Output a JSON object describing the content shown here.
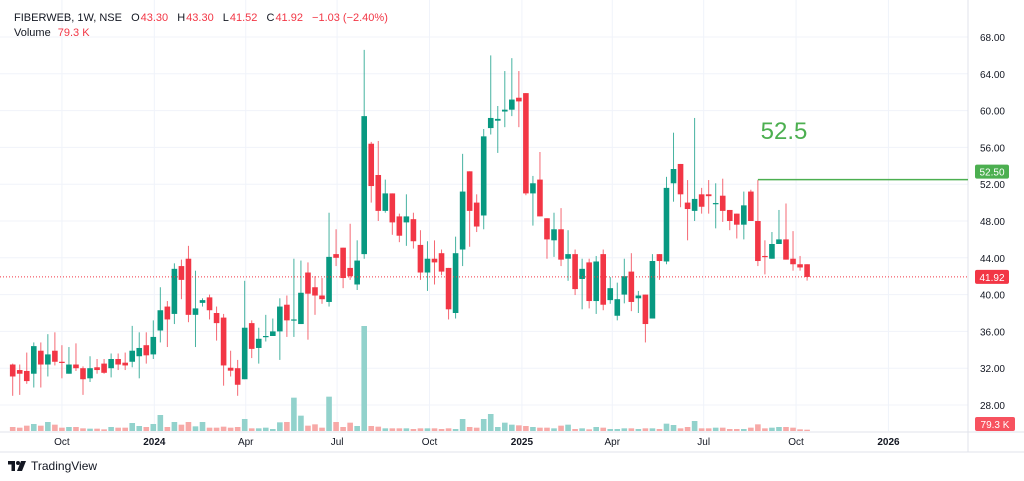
{
  "header": {
    "symbol": "FIBERWEB, 1W, NSE",
    "ohlc": [
      {
        "label": "O",
        "value": "43.30"
      },
      {
        "label": "H",
        "value": "43.30"
      },
      {
        "label": "L",
        "value": "41.52"
      },
      {
        "label": "C",
        "value": "41.92"
      }
    ],
    "change": "−1.03 (−2.40%)",
    "volume_label": "Volume",
    "volume_value": "79.3 K"
  },
  "footer": {
    "brand": "TradingView"
  },
  "chart_data": {
    "type": "candlestick",
    "interval": "1W",
    "columns": [
      "date",
      "open",
      "high",
      "low",
      "close",
      "volume_k"
    ],
    "candles": [
      [
        "2023-08-07",
        32.4,
        32.5,
        29.0,
        31.1,
        240
      ],
      [
        "2023-08-14",
        31.8,
        32.4,
        29.1,
        31.4,
        200
      ],
      [
        "2023-08-21",
        31.7,
        33.7,
        30.3,
        30.6,
        320
      ],
      [
        "2023-08-28",
        31.4,
        34.8,
        29.9,
        34.4,
        420
      ],
      [
        "2023-09-04",
        33.9,
        34.8,
        29.9,
        32.4,
        320
      ],
      [
        "2023-09-11",
        32.4,
        35.7,
        31.1,
        33.5,
        540
      ],
      [
        "2023-09-18",
        33.9,
        35.9,
        32.3,
        32.7,
        380
      ],
      [
        "2023-09-25",
        32.7,
        34.5,
        30.9,
        32.6,
        200
      ],
      [
        "2023-10-02",
        31.4,
        34.3,
        31.4,
        32.4,
        240
      ],
      [
        "2023-10-09",
        32.4,
        34.7,
        31.7,
        32.0,
        240
      ],
      [
        "2023-10-16",
        32.0,
        32.2,
        29.1,
        30.8,
        160
      ],
      [
        "2023-10-23",
        30.9,
        33.3,
        30.5,
        32.0,
        140
      ],
      [
        "2023-10-30",
        32.1,
        33.0,
        31.4,
        31.8,
        140
      ],
      [
        "2023-11-06",
        32.5,
        33.0,
        31.4,
        31.5,
        100
      ],
      [
        "2023-11-13",
        32.0,
        33.6,
        31.0,
        33.0,
        240
      ],
      [
        "2023-11-20",
        33.0,
        33.6,
        31.8,
        32.4,
        200
      ],
      [
        "2023-11-27",
        32.6,
        33.7,
        31.8,
        32.3,
        200
      ],
      [
        "2023-12-04",
        32.7,
        36.6,
        32.1,
        33.9,
        480
      ],
      [
        "2023-12-11",
        33.3,
        35.9,
        30.9,
        34.2,
        300
      ],
      [
        "2023-12-18",
        34.5,
        35.9,
        32.5,
        33.4,
        240
      ],
      [
        "2023-12-25",
        33.5,
        37.2,
        33.0,
        35.4,
        420
      ],
      [
        "2024-01-01",
        36.1,
        40.8,
        34.8,
        38.3,
        960
      ],
      [
        "2024-01-08",
        38.7,
        39.3,
        34.3,
        37.3,
        240
      ],
      [
        "2024-01-15",
        37.9,
        43.4,
        36.8,
        42.8,
        540
      ],
      [
        "2024-01-22",
        43.1,
        43.8,
        39.5,
        41.6,
        380
      ],
      [
        "2024-01-29",
        43.9,
        45.3,
        37.0,
        37.8,
        540
      ],
      [
        "2024-02-05",
        37.8,
        42.6,
        34.3,
        38.5,
        280
      ],
      [
        "2024-02-12",
        39.1,
        39.6,
        38.7,
        39.4,
        540
      ],
      [
        "2024-02-19",
        39.7,
        40.0,
        37.3,
        38.3,
        200
      ],
      [
        "2024-02-26",
        38.0,
        38.7,
        35.0,
        36.9,
        200
      ],
      [
        "2024-03-04",
        37.5,
        37.9,
        30.1,
        32.3,
        260
      ],
      [
        "2024-03-11",
        32.05,
        33.9,
        31.1,
        31.73,
        200
      ],
      [
        "2024-03-18",
        32.0,
        32.9,
        29.0,
        30.2,
        240
      ],
      [
        "2024-03-25",
        30.8,
        41.5,
        30.8,
        36.4,
        720
      ],
      [
        "2024-04-01",
        36.9,
        37.2,
        33.1,
        34.1,
        160
      ],
      [
        "2024-04-08",
        34.2,
        36.4,
        32.5,
        35.2,
        160
      ],
      [
        "2024-04-15",
        35.45,
        37.8,
        34.9,
        35.5,
        200
      ],
      [
        "2024-04-22",
        35.5,
        37.4,
        35.5,
        36.0,
        120
      ],
      [
        "2024-04-29",
        36.0,
        39.6,
        32.9,
        38.7,
        520
      ],
      [
        "2024-05-06",
        38.9,
        39.9,
        35.4,
        37.2,
        540
      ],
      [
        "2024-05-13",
        37.2,
        43.9,
        35.4,
        37.3,
        2000
      ],
      [
        "2024-05-20",
        36.8,
        43.7,
        36.8,
        40.2,
        920
      ],
      [
        "2024-05-27",
        42.4,
        43.5,
        35.1,
        40.1,
        320
      ],
      [
        "2024-06-03",
        40.8,
        42.0,
        37.8,
        39.9,
        400
      ],
      [
        "2024-06-10",
        39.9,
        41.8,
        39.0,
        39.5,
        200
      ],
      [
        "2024-06-17",
        39.2,
        48.9,
        38.7,
        44.1,
        2060
      ],
      [
        "2024-06-24",
        44.4,
        47.1,
        43.1,
        44.0,
        540
      ],
      [
        "2024-07-01",
        45.1,
        45.1,
        40.7,
        41.8,
        240
      ],
      [
        "2024-07-08",
        42.9,
        47.7,
        41.6,
        42.0,
        500
      ],
      [
        "2024-07-15",
        41.1,
        45.9,
        40.5,
        43.7,
        300
      ],
      [
        "2024-07-22",
        44.4,
        66.6,
        43.9,
        59.4,
        6300
      ],
      [
        "2024-07-29",
        56.4,
        56.6,
        50.0,
        51.8,
        300
      ],
      [
        "2024-08-05",
        53.0,
        56.7,
        48.0,
        49.1,
        260
      ],
      [
        "2024-08-12",
        49.1,
        52.5,
        48.9,
        51.0,
        160
      ],
      [
        "2024-08-19",
        51.0,
        51.0,
        46.5,
        47.85,
        160
      ],
      [
        "2024-08-26",
        48.5,
        48.8,
        45.7,
        46.4,
        160
      ],
      [
        "2024-09-02",
        47.85,
        50.9,
        45.3,
        48.5,
        160
      ],
      [
        "2024-09-09",
        48.2,
        48.9,
        45.0,
        45.8,
        120
      ],
      [
        "2024-09-16",
        45.4,
        47.0,
        41.6,
        42.4,
        160
      ],
      [
        "2024-09-23",
        42.4,
        45.8,
        40.4,
        43.9,
        160
      ],
      [
        "2024-09-30",
        43.9,
        45.9,
        41.1,
        43.5,
        160
      ],
      [
        "2024-10-07",
        44.5,
        44.9,
        42.1,
        42.5,
        120
      ],
      [
        "2024-10-14",
        42.9,
        42.9,
        37.3,
        38.4,
        160
      ],
      [
        "2024-10-21",
        38.0,
        46.3,
        37.4,
        44.5,
        120
      ],
      [
        "2024-10-28",
        44.9,
        55.3,
        43.1,
        51.2,
        720
      ],
      [
        "2024-11-04",
        53.4,
        53.4,
        45.2,
        49.1,
        240
      ],
      [
        "2024-11-11",
        50.0,
        50.9,
        46.8,
        47.4,
        200
      ],
      [
        "2024-11-18",
        48.6,
        58.0,
        47.1,
        57.2,
        720
      ],
      [
        "2024-11-25",
        58.1,
        66.0,
        57.4,
        59.2,
        1020
      ],
      [
        "2024-12-02",
        58.9,
        60.5,
        55.4,
        59.1,
        240
      ],
      [
        "2024-12-09",
        59.9,
        64.3,
        58.2,
        60.1,
        500
      ],
      [
        "2024-12-16",
        60.1,
        65.7,
        59.4,
        61.2,
        380
      ],
      [
        "2024-12-23",
        61.4,
        64.3,
        58.2,
        61.0,
        340
      ],
      [
        "2024-12-30",
        61.9,
        61.9,
        50.8,
        51.0,
        300
      ],
      [
        "2025-01-06",
        51.0,
        52.9,
        47.5,
        52.1,
        240
      ],
      [
        "2025-01-13",
        52.5,
        55.5,
        48.5,
        48.5,
        200
      ],
      [
        "2025-01-20",
        48.3,
        48.3,
        43.9,
        46.0,
        200
      ],
      [
        "2025-01-27",
        45.9,
        48.9,
        44.1,
        47.1,
        160
      ],
      [
        "2025-02-03",
        47.1,
        49.4,
        43.1,
        43.8,
        320
      ],
      [
        "2025-02-10",
        43.9,
        47.0,
        41.5,
        44.4,
        380
      ],
      [
        "2025-02-17",
        44.4,
        44.9,
        39.95,
        40.6,
        120
      ],
      [
        "2025-02-24",
        41.7,
        43.9,
        38.4,
        42.8,
        160
      ],
      [
        "2025-03-03",
        43.5,
        43.9,
        38.5,
        39.3,
        100
      ],
      [
        "2025-03-10",
        39.3,
        44.2,
        37.9,
        43.6,
        240
      ],
      [
        "2025-03-17",
        44.4,
        44.9,
        38.3,
        38.9,
        200
      ],
      [
        "2025-03-24",
        39.4,
        41.9,
        39.0,
        40.7,
        120
      ],
      [
        "2025-03-31",
        37.7,
        41.3,
        37.2,
        39.5,
        120
      ],
      [
        "2025-04-07",
        40.0,
        43.9,
        39.05,
        42.0,
        160
      ],
      [
        "2025-04-14",
        42.5,
        44.5,
        38.2,
        39.2,
        160
      ],
      [
        "2025-04-21",
        39.6,
        40.4,
        38.0,
        39.9,
        120
      ],
      [
        "2025-04-28",
        40.0,
        40.0,
        34.8,
        36.8,
        160
      ],
      [
        "2025-05-05",
        37.4,
        44.4,
        37.4,
        43.65,
        160
      ],
      [
        "2025-05-12",
        44.4,
        44.4,
        41.6,
        43.65,
        120
      ],
      [
        "2025-05-19",
        43.6,
        52.8,
        43.3,
        51.6,
        440
      ],
      [
        "2025-05-26",
        52.1,
        57.6,
        50.1,
        53.65,
        360
      ],
      [
        "2025-06-02",
        54.2,
        54.2,
        49.5,
        50.9,
        160
      ],
      [
        "2025-06-09",
        50.0,
        52.45,
        45.9,
        49.3,
        240
      ],
      [
        "2025-06-16",
        49.1,
        59.2,
        48.0,
        50.4,
        600
      ],
      [
        "2025-06-23",
        50.9,
        51.6,
        48.8,
        49.55,
        160
      ],
      [
        "2025-06-30",
        50.9,
        52.45,
        48.8,
        50.7,
        160
      ],
      [
        "2025-07-07",
        49.9,
        52.1,
        47.2,
        49.95,
        200
      ],
      [
        "2025-07-14",
        50.75,
        52.6,
        47.9,
        49.1,
        200
      ],
      [
        "2025-07-21",
        49.2,
        49.2,
        47.0,
        48.0,
        120
      ],
      [
        "2025-07-28",
        48.8,
        48.8,
        46.1,
        47.6,
        120
      ],
      [
        "2025-08-04",
        47.6,
        51.2,
        46.0,
        49.7,
        120
      ],
      [
        "2025-08-11",
        51.2,
        51.4,
        48.0,
        48.0,
        200
      ],
      [
        "2025-08-18",
        48.0,
        52.45,
        43.1,
        43.65,
        400
      ],
      [
        "2025-08-25",
        44.2,
        45.9,
        42.2,
        44.1,
        160
      ],
      [
        "2025-09-01",
        43.9,
        46.8,
        43.9,
        45.5,
        200
      ],
      [
        "2025-09-08",
        45.5,
        49.2,
        45.5,
        46.0,
        240
      ],
      [
        "2025-09-15",
        46.0,
        49.9,
        43.8,
        43.8,
        240
      ],
      [
        "2025-09-22",
        43.9,
        46.9,
        42.6,
        43.3,
        200
      ],
      [
        "2025-09-29",
        43.3,
        44.2,
        42.6,
        42.95,
        100
      ],
      [
        "2025-10-06",
        43.3,
        43.3,
        41.52,
        41.92,
        79.3
      ]
    ],
    "price_axis": {
      "range": [
        28,
        68
      ],
      "ticks": [
        "28.00",
        "32.00",
        "36.00",
        "40.00",
        "44.00",
        "48.00",
        "52.00",
        "56.00",
        "60.00",
        "64.00",
        "68.00"
      ]
    },
    "time_axis": [
      {
        "label": "Oct",
        "date": "2023-10-01"
      },
      {
        "label": "2024",
        "date": "2024-01-01",
        "bold": true
      },
      {
        "label": "Apr",
        "date": "2024-04-01"
      },
      {
        "label": "Jul",
        "date": "2024-07-01"
      },
      {
        "label": "Oct",
        "date": "2024-10-01"
      },
      {
        "label": "2025",
        "date": "2025-01-01",
        "bold": true
      },
      {
        "label": "Apr",
        "date": "2025-04-01"
      },
      {
        "label": "Jul",
        "date": "2025-07-01"
      },
      {
        "label": "Oct",
        "date": "2025-10-01"
      },
      {
        "label": "2026",
        "date": "2026-01-01",
        "bold": true
      }
    ],
    "grid": true,
    "last_price": {
      "value": 41.92,
      "label": "41.92"
    },
    "last_volume_label": "79.3 K",
    "annotation": {
      "text": "52.5",
      "level": 52.5,
      "label": "52.50",
      "start_date": "2025-08-18"
    },
    "colors": {
      "up": "#089981",
      "down": "#f23645",
      "volume_up": "#92d2cc",
      "volume_down": "#f7a9a7",
      "annotation": "#4caf50",
      "grid": "#f0f3fa",
      "axis_text": "#131722"
    }
  }
}
